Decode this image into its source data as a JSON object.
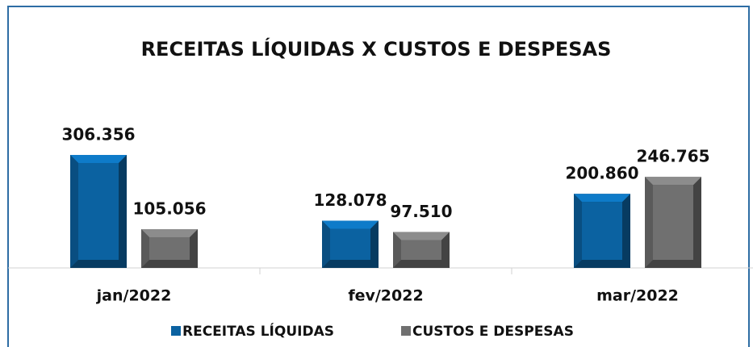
{
  "chart_data": {
    "type": "bar",
    "title": "RECEITAS LÍQUIDAS X CUSTOS E DESPESAS",
    "categories": [
      "jan/2022",
      "fev/2022",
      "mar/2022"
    ],
    "series": [
      {
        "name": "RECEITAS LÍQUIDAS",
        "color": "#0b62a1",
        "values": [
          306356,
          128078,
          200860
        ],
        "value_labels": [
          "306.356",
          "128.078",
          "200.860"
        ]
      },
      {
        "name": "CUSTOS E DESPESAS",
        "color": "#707070",
        "values": [
          105056,
          97510,
          246765
        ],
        "value_labels": [
          "105.056",
          "97.510",
          "246.765"
        ]
      }
    ]
  }
}
